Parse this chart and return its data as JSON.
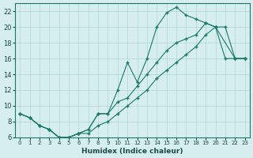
{
  "xlabel": "Humidex (Indice chaleur)",
  "bg_color": "#d6eeee",
  "grid_color": "#b8d8d8",
  "line_color": "#1a7a6a",
  "xlim": [
    -0.5,
    23.5
  ],
  "ylim": [
    6,
    23
  ],
  "xticks": [
    0,
    1,
    2,
    3,
    4,
    5,
    6,
    7,
    8,
    9,
    10,
    11,
    12,
    13,
    14,
    15,
    16,
    17,
    18,
    19,
    20,
    21,
    22,
    23
  ],
  "yticks": [
    6,
    8,
    10,
    12,
    14,
    16,
    18,
    20,
    22
  ],
  "line1_x": [
    0,
    1,
    2,
    3,
    4,
    5,
    6,
    7,
    8,
    9,
    10,
    11,
    12,
    13,
    14,
    15,
    16,
    17,
    18,
    19,
    20,
    22,
    23
  ],
  "line1_y": [
    9.0,
    8.5,
    7.5,
    7.0,
    6.0,
    6.0,
    6.5,
    7.0,
    9.0,
    9.0,
    12.0,
    15.5,
    13.0,
    16.0,
    20.0,
    21.8,
    22.5,
    21.5,
    21.0,
    20.5,
    20.0,
    16.0,
    16.0
  ],
  "line2_x": [
    0,
    1,
    2,
    3,
    4,
    5,
    6,
    7,
    8,
    9,
    10,
    11,
    12,
    13,
    14,
    15,
    16,
    17,
    18,
    19,
    20,
    21,
    22,
    23
  ],
  "line2_y": [
    9.0,
    8.5,
    7.5,
    7.0,
    6.0,
    6.0,
    6.5,
    7.0,
    9.0,
    9.0,
    10.5,
    11.0,
    12.5,
    14.0,
    15.5,
    17.0,
    18.0,
    18.5,
    19.0,
    20.5,
    20.0,
    16.0,
    16.0,
    16.0
  ],
  "line3_x": [
    0,
    1,
    2,
    3,
    4,
    5,
    6,
    7,
    8,
    9,
    10,
    11,
    12,
    13,
    14,
    15,
    16,
    17,
    18,
    19,
    20,
    21,
    22,
    23
  ],
  "line3_y": [
    9.0,
    8.5,
    7.5,
    7.0,
    6.0,
    6.0,
    6.5,
    6.5,
    7.5,
    8.0,
    9.0,
    10.0,
    11.0,
    12.0,
    13.5,
    14.5,
    15.5,
    16.5,
    17.5,
    19.0,
    20.0,
    20.0,
    16.0,
    16.0
  ]
}
